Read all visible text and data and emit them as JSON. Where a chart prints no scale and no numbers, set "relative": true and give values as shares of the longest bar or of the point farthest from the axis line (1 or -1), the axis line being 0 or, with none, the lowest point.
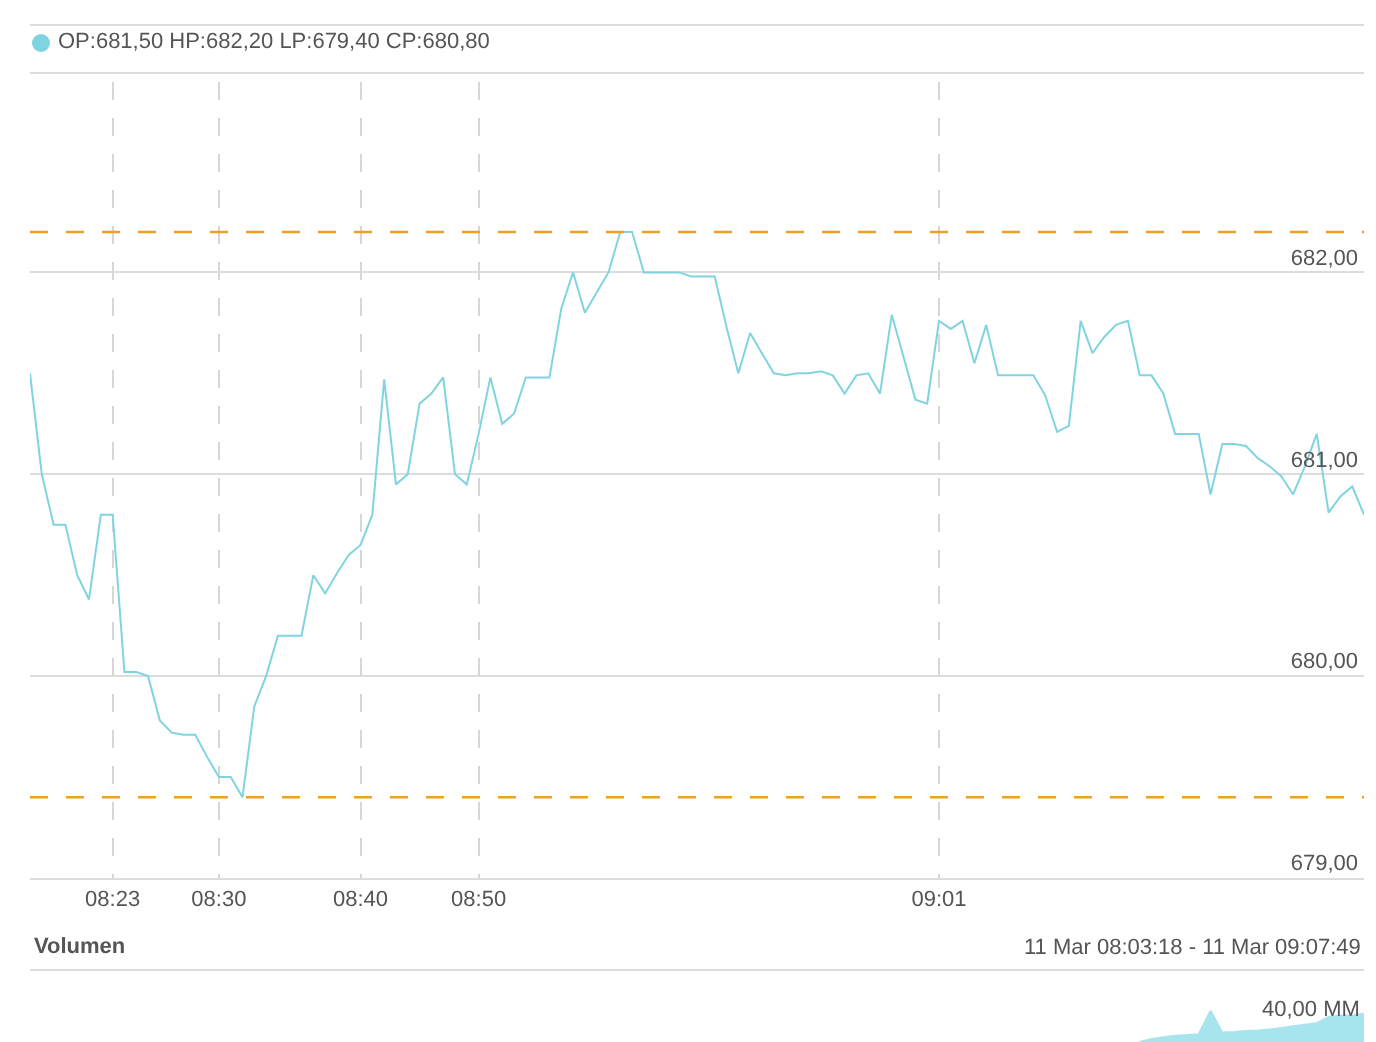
{
  "chart_data": [
    {
      "type": "line",
      "categories": [
        null,
        null,
        null,
        null,
        null,
        null,
        null,
        "08:23",
        null,
        null,
        null,
        null,
        null,
        null,
        null,
        null,
        "08:30",
        null,
        null,
        null,
        null,
        null,
        null,
        null,
        null,
        null,
        null,
        null,
        "08:40",
        null,
        null,
        null,
        null,
        null,
        null,
        null,
        null,
        null,
        "08:50",
        null,
        null,
        null,
        null,
        null,
        null,
        null,
        null,
        null,
        null,
        null,
        null,
        null,
        null,
        null,
        null,
        null,
        null,
        null,
        null,
        null,
        null,
        null,
        null,
        null,
        null,
        null,
        null,
        null,
        null,
        null,
        null,
        null,
        null,
        null,
        null,
        null,
        null,
        "09:01",
        null,
        null,
        null,
        null,
        null,
        null,
        null,
        null,
        null,
        null,
        null,
        null,
        null,
        null,
        null,
        null,
        null,
        null,
        null,
        null,
        null,
        null,
        null,
        null,
        null,
        null,
        null,
        null,
        null,
        null,
        null,
        null,
        null,
        null,
        null,
        null
      ],
      "series": [
        {
          "name": "OP:681,50 HP:682,20 LP:679,40 CP:680,80",
          "color": "#80d4e0",
          "values": [
            681.5,
            681.0,
            680.75,
            680.75,
            680.5,
            680.38,
            680.8,
            680.8,
            680.02,
            680.02,
            680.0,
            679.78,
            679.72,
            679.71,
            679.71,
            679.6,
            679.5,
            679.5,
            679.4,
            679.85,
            680.0,
            680.2,
            680.2,
            680.2,
            680.5,
            680.41,
            680.51,
            680.6,
            680.65,
            680.8,
            681.47,
            680.95,
            681.0,
            681.35,
            681.4,
            681.48,
            681.0,
            680.95,
            681.2,
            681.48,
            681.25,
            681.3,
            681.48,
            681.48,
            681.48,
            681.82,
            682.0,
            681.8,
            681.9,
            682.0,
            682.2,
            682.2,
            682.0,
            682.0,
            682.0,
            682.0,
            681.98,
            681.98,
            681.98,
            681.73,
            681.5,
            681.7,
            681.6,
            681.5,
            681.49,
            681.5,
            681.5,
            681.51,
            681.49,
            681.4,
            681.49,
            681.5,
            681.4,
            681.79,
            681.58,
            681.37,
            681.35,
            681.76,
            681.72,
            681.76,
            681.55,
            681.74,
            681.49,
            681.49,
            681.49,
            681.49,
            681.39,
            681.21,
            681.24,
            681.76,
            681.6,
            681.68,
            681.74,
            681.76,
            681.49,
            681.49,
            681.4,
            681.2,
            681.2,
            681.2,
            680.9,
            681.15,
            681.15,
            681.14,
            681.08,
            681.04,
            680.99,
            680.9,
            681.04,
            681.2,
            680.81,
            680.89,
            680.94,
            680.8
          ]
        }
      ],
      "ylim": [
        679,
        683.3
      ],
      "yticks": [
        {
          "value": 679,
          "label": "679,00"
        },
        {
          "value": 680,
          "label": "680,00"
        },
        {
          "value": 681,
          "label": "681,00"
        },
        {
          "value": 682,
          "label": "682,00"
        }
      ],
      "ref_lines": [
        {
          "axis": "y",
          "value": 682.2,
          "label": null,
          "color": "#f0a020",
          "line_style": "dashed"
        },
        {
          "axis": "y",
          "value": 679.4,
          "label": null,
          "color": "#f0a020",
          "line_style": "dashed"
        }
      ],
      "grid": true,
      "legend": "top left",
      "marker": "none",
      "line_style": "solid"
    },
    {
      "type": "area",
      "title": "Volumen",
      "relative": true,
      "annotations": [
        "11 Mar 08:03:18 - 11 Mar 09:07:49",
        "40,00 MM"
      ],
      "categories": [
        null,
        null,
        null,
        null,
        null,
        null,
        null,
        null,
        null,
        null,
        null,
        null,
        null,
        null,
        null,
        null,
        null,
        null,
        null,
        null,
        null,
        null,
        null,
        null,
        null,
        null,
        null,
        null,
        null,
        null,
        null,
        null,
        null,
        null,
        null,
        null,
        null,
        null,
        null,
        null,
        null,
        null,
        null,
        null,
        null,
        null,
        null,
        null,
        null,
        null,
        null,
        null,
        null,
        null,
        null,
        null,
        null,
        null,
        null,
        null,
        null,
        null,
        null,
        null,
        null,
        null,
        null,
        null,
        null,
        null,
        null,
        null,
        null,
        null,
        null,
        null,
        null,
        null,
        null,
        null,
        null,
        null,
        null,
        null,
        null,
        null,
        null,
        null,
        null,
        null,
        null,
        null,
        null,
        null,
        null,
        null,
        null,
        null,
        null,
        null,
        null,
        null,
        null,
        null,
        null,
        null,
        null,
        null,
        null,
        null,
        null,
        null,
        null,
        null
      ],
      "series": [
        {
          "color": "#a8e4ee",
          "values": [
            null,
            null,
            null,
            null,
            null,
            null,
            null,
            null,
            null,
            null,
            null,
            null,
            null,
            null,
            null,
            null,
            null,
            null,
            null,
            null,
            null,
            null,
            null,
            null,
            null,
            null,
            null,
            null,
            null,
            null,
            null,
            null,
            null,
            null,
            null,
            null,
            null,
            null,
            null,
            null,
            null,
            null,
            null,
            null,
            null,
            null,
            null,
            null,
            null,
            null,
            null,
            null,
            null,
            null,
            null,
            null,
            null,
            null,
            null,
            null,
            null,
            null,
            null,
            null,
            null,
            null,
            null,
            null,
            null,
            null,
            null,
            null,
            null,
            null,
            null,
            null,
            null,
            null,
            null,
            null,
            null,
            null,
            null,
            null,
            null,
            null,
            null,
            null,
            null,
            null,
            null,
            null,
            null,
            null,
            0,
            0.1,
            0.15,
            0.2,
            0.22,
            0.25,
            1,
            0.3,
            0.32,
            0.35,
            0.37,
            0.4,
            0.45,
            0.5,
            0.55,
            0.6,
            0.8,
            0.85,
            0.85,
            0.9
          ]
        }
      ]
    }
  ]
}
